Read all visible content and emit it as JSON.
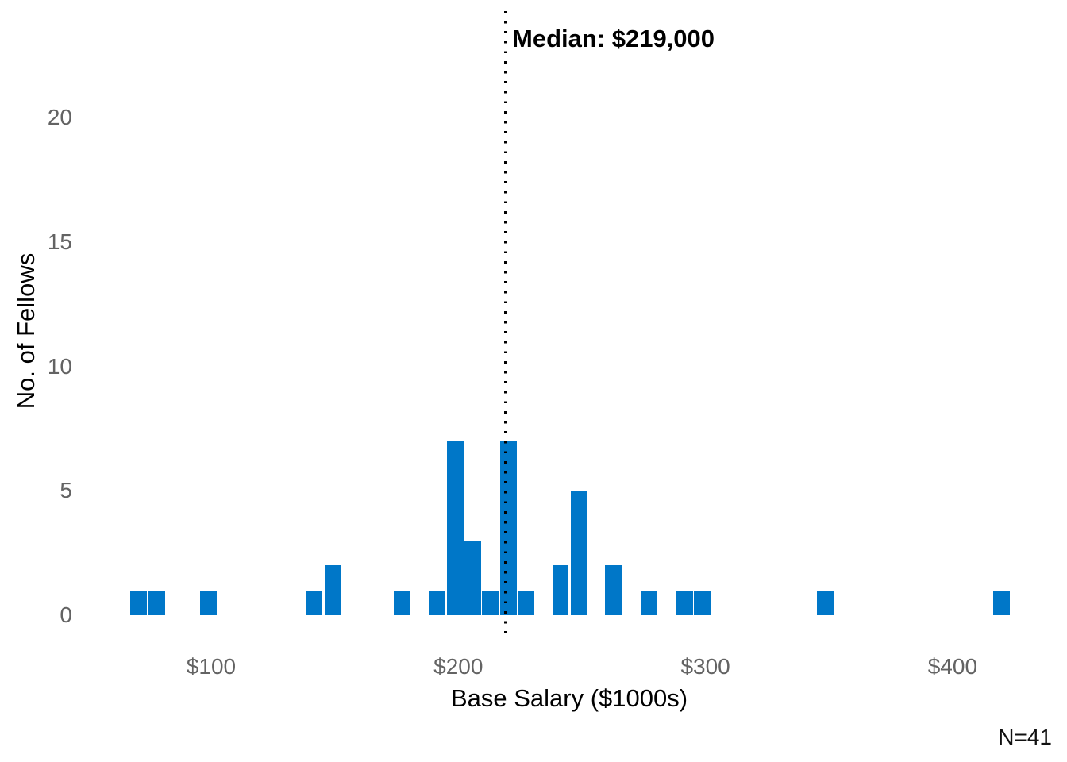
{
  "chart_data": {
    "type": "bar",
    "subtype": "histogram",
    "title": "",
    "xlabel": "Base Salary ($1000s)",
    "ylabel": "No. of Fellows",
    "x_ticks": [
      {
        "value": 100,
        "label": "$100"
      },
      {
        "value": 200,
        "label": "$200"
      },
      {
        "value": 300,
        "label": "$300"
      },
      {
        "value": 400,
        "label": "$400"
      }
    ],
    "y_ticks": [
      {
        "value": 0,
        "label": "0"
      },
      {
        "value": 5,
        "label": "5"
      },
      {
        "value": 10,
        "label": "10"
      },
      {
        "value": 15,
        "label": "15"
      },
      {
        "value": 20,
        "label": "20"
      }
    ],
    "xlim": [
      50,
      445
    ],
    "ylim": [
      0,
      23
    ],
    "grid": false,
    "bar_color": "#0077c8",
    "tick_color": "#636363",
    "binwidth_k": 7.1,
    "bins": [
      {
        "x": 70.7,
        "count": 1
      },
      {
        "x": 78.0,
        "count": 1
      },
      {
        "x": 98.9,
        "count": 1
      },
      {
        "x": 141.7,
        "count": 1
      },
      {
        "x": 149.1,
        "count": 2
      },
      {
        "x": 177.2,
        "count": 1
      },
      {
        "x": 191.6,
        "count": 1
      },
      {
        "x": 198.8,
        "count": 7
      },
      {
        "x": 205.9,
        "count": 3
      },
      {
        "x": 213.0,
        "count": 1
      },
      {
        "x": 220.3,
        "count": 7
      },
      {
        "x": 227.4,
        "count": 1
      },
      {
        "x": 241.3,
        "count": 2
      },
      {
        "x": 248.7,
        "count": 5
      },
      {
        "x": 262.8,
        "count": 2
      },
      {
        "x": 277.0,
        "count": 1
      },
      {
        "x": 291.6,
        "count": 1
      },
      {
        "x": 298.6,
        "count": 1
      },
      {
        "x": 348.5,
        "count": 1
      },
      {
        "x": 419.7,
        "count": 1
      }
    ],
    "median": {
      "value_k": 219,
      "label": "Median: $219,000",
      "line_style": "dotted",
      "line_color": "#000000"
    },
    "n_total": 41,
    "n_label": "N=41"
  }
}
